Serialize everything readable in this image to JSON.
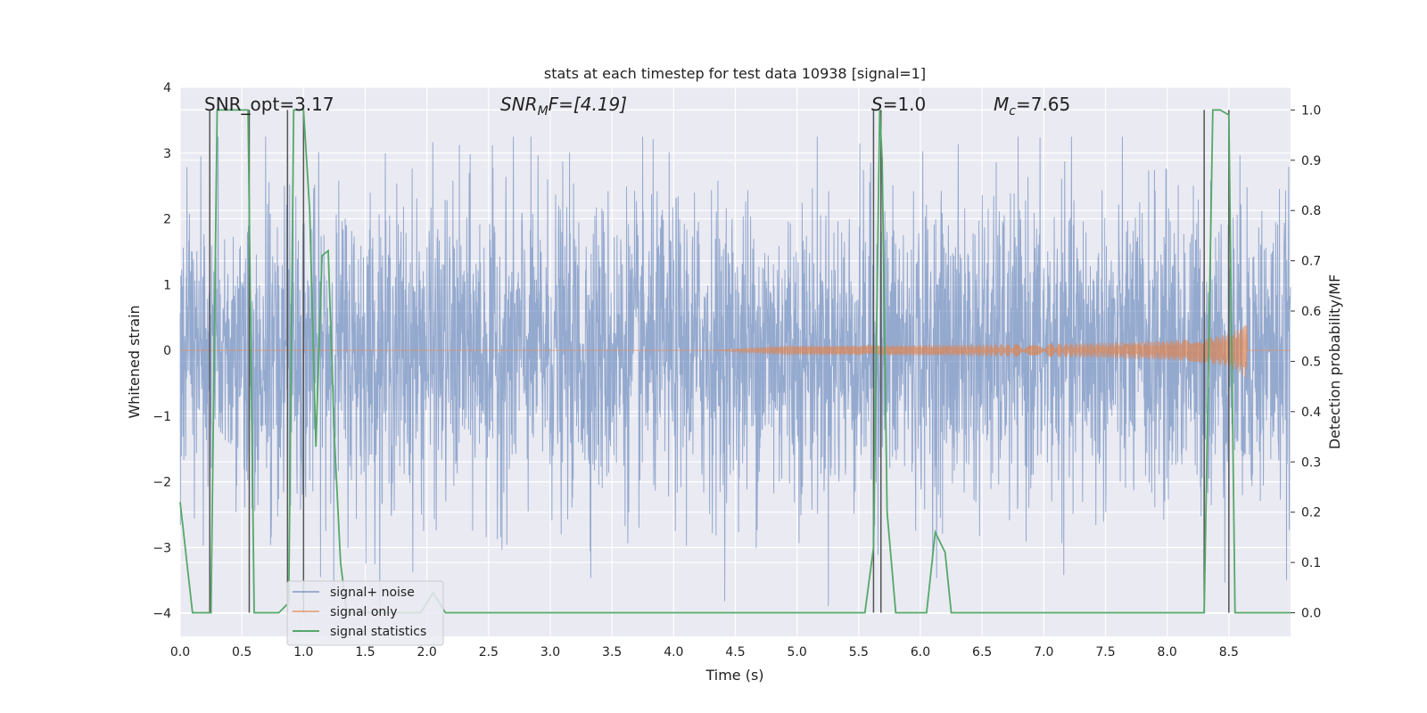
{
  "chart_data": {
    "type": "line",
    "title": "stats at each timestep for test data 10938 [signal=1]",
    "xlabel": "Time (s)",
    "ylabel": "Whitened strain",
    "y2label": "Detection probability/MF",
    "xlim": [
      0,
      9.0
    ],
    "ylim": [
      -4.35,
      4.0
    ],
    "y2lim": [
      -0.047,
      1.045
    ],
    "xticks": [
      "0.0",
      "0.5",
      "1.0",
      "1.5",
      "2.0",
      "2.5",
      "3.0",
      "3.5",
      "4.0",
      "4.5",
      "5.0",
      "5.5",
      "6.0",
      "6.5",
      "7.0",
      "7.5",
      "8.0",
      "8.5"
    ],
    "yticks": [
      "−4",
      "−3",
      "−2",
      "−1",
      "0",
      "1",
      "2",
      "3",
      "4"
    ],
    "y2ticks": [
      "0.0",
      "0.1",
      "0.2",
      "0.3",
      "0.4",
      "0.5",
      "0.6",
      "0.7",
      "0.8",
      "0.9",
      "1.0"
    ],
    "grid": true,
    "legend_position": "lower-left",
    "annotations": {
      "snr_opt": "SNR_opt=3.17",
      "snr_mf_prefix": "SNR",
      "snr_mf_sub": "M",
      "snr_mf_suffix": "F=[4.19]",
      "s_label": "S",
      "s_value": "=1.0",
      "mc_label": "M",
      "mc_sub": "c",
      "mc_value": "=7.65"
    },
    "series": [
      {
        "name": "signal+ noise",
        "color": "#4c72b0",
        "description_kind": "noisy strain, approx. Gaussian with sigma ~1.1 over 0-9 s"
      },
      {
        "name": "signal only",
        "color": "#dd8452",
        "chirp": {
          "start": 4.3,
          "end": 8.65,
          "max_amplitude": 0.42
        }
      },
      {
        "name": "signal statistics",
        "color": "#55a868",
        "x": [
          0.0,
          0.05,
          0.1,
          0.25,
          0.3,
          0.4,
          0.5,
          0.55,
          0.6,
          0.65,
          0.8,
          0.88,
          0.92,
          1.0,
          1.05,
          1.1,
          1.15,
          1.2,
          1.25,
          1.3,
          1.35,
          1.45,
          1.95,
          2.05,
          2.15,
          5.55,
          5.62,
          5.67,
          5.69,
          5.73,
          5.8,
          6.05,
          6.12,
          6.2,
          6.25,
          8.3,
          8.37,
          8.43,
          8.5,
          8.55,
          9.0
        ],
        "y": [
          0.22,
          0.11,
          0.0,
          0.0,
          1.0,
          1.0,
          1.0,
          1.0,
          0.0,
          0.0,
          0.0,
          0.02,
          1.0,
          1.0,
          0.8,
          0.33,
          0.71,
          0.72,
          0.35,
          0.1,
          0.0,
          0.0,
          0.0,
          0.04,
          0.0,
          0.0,
          0.13,
          1.0,
          0.9,
          0.2,
          0.0,
          0.0,
          0.16,
          0.12,
          0.0,
          0.0,
          1.0,
          1.0,
          0.99,
          0.0,
          0.0
        ]
      }
    ],
    "event_markers": [
      {
        "x": 0.24,
        "y_top": 1.0,
        "y_bottom": 0.0
      },
      {
        "x": 0.56,
        "y_top": 1.0,
        "y_bottom": 0.0
      },
      {
        "x": 0.87,
        "y_top": 1.0,
        "y_bottom": 0.0
      },
      {
        "x": 1.0,
        "y_top": 1.0,
        "y_bottom": 0.0
      },
      {
        "x": 5.62,
        "y_top": 1.0,
        "y_bottom": 0.0
      },
      {
        "x": 5.68,
        "y_top": 1.0,
        "y_bottom": 0.0
      },
      {
        "x": 8.3,
        "y_top": 1.0,
        "y_bottom": 0.0
      },
      {
        "x": 8.5,
        "y_top": 1.0,
        "y_bottom": 0.0
      }
    ]
  }
}
